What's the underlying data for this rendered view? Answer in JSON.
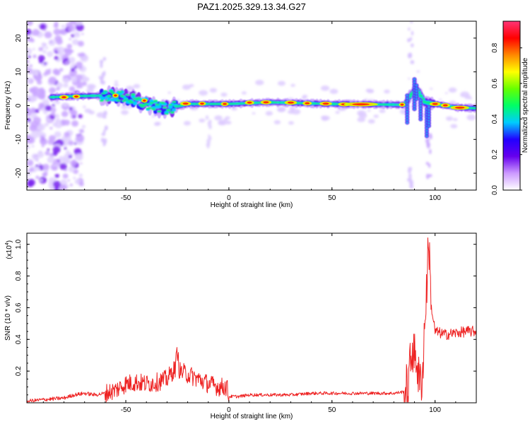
{
  "figure": {
    "title": "PAZ1.2025.329.13.34.G27"
  },
  "chart_data": [
    {
      "type": "heatmap",
      "xlabel": "Height of straight line (km)",
      "ylabel": "Frequency (Hz)",
      "xlim": [
        -98,
        120
      ],
      "ylim": [
        -25,
        25
      ],
      "xticks": [
        -50,
        0,
        50,
        100
      ],
      "yticks": [
        -20,
        -10,
        0,
        10,
        20
      ],
      "ridge": {
        "x": [
          -86,
          -75,
          -60,
          -50,
          -40,
          -30,
          -20,
          0,
          20,
          50,
          80,
          85,
          88,
          91,
          95,
          100,
          110,
          120
        ],
        "y": [
          2.5,
          2.8,
          3.0,
          2.5,
          0.5,
          -1.0,
          0.5,
          0.5,
          1.0,
          0.5,
          0.3,
          0.2,
          3.0,
          5.0,
          1.0,
          0.5,
          -0.5,
          -0.8
        ]
      },
      "colorbar": {
        "label": "Normalized spectral amplitude",
        "range": [
          0,
          0.95
        ],
        "ticks": [
          0.0,
          0.2,
          0.4,
          0.6,
          0.8
        ],
        "tick_labels": [
          "0.0",
          "0.2",
          "0.4",
          "0.6",
          "0.8"
        ],
        "colors": [
          "#ffffff",
          "#cc99ff",
          "#6600ee",
          "#2200ff",
          "#00ccff",
          "#00ff66",
          "#66ff00",
          "#ffff00",
          "#ff8800",
          "#ff0000",
          "#ff3377"
        ]
      }
    },
    {
      "type": "line",
      "xlabel": "Height of straight line (km)",
      "ylabel": "SNR (10 * v/v)",
      "y_scale_label": "(x10",
      "y_scale_exp": "4",
      "y_scale_close": ")",
      "xlim": [
        -98,
        120
      ],
      "ylim": [
        0,
        1.07
      ],
      "xticks": [
        -50,
        0,
        50,
        100
      ],
      "yticks": [
        0.2,
        0.4,
        0.6,
        0.8,
        1.0
      ],
      "ytick_labels": [
        "0.2",
        "0.4",
        "0.6",
        "0.8",
        "1.0"
      ],
      "series": [
        {
          "color": "#ee2222",
          "x": [
            -98,
            -90,
            -80,
            -75,
            -70,
            -65,
            -60,
            -55,
            -50,
            -45,
            -40,
            -35,
            -30,
            -26,
            -25,
            -24,
            -20,
            -15,
            -10,
            -5,
            -1,
            0,
            5,
            10,
            20,
            30,
            40,
            50,
            60,
            70,
            80,
            85,
            87,
            88,
            89,
            90,
            91,
            92,
            93,
            94,
            95,
            96,
            97,
            98,
            100,
            105,
            110,
            115,
            120
          ],
          "values": [
            0.01,
            0.02,
            0.03,
            0.05,
            0.06,
            0.05,
            0.06,
            0.08,
            0.12,
            0.13,
            0.12,
            0.13,
            0.15,
            0.22,
            0.33,
            0.2,
            0.18,
            0.15,
            0.12,
            0.1,
            0.1,
            0.04,
            0.04,
            0.05,
            0.05,
            0.05,
            0.06,
            0.06,
            0.06,
            0.06,
            0.06,
            0.07,
            0.1,
            0.25,
            0.36,
            0.28,
            0.3,
            0.15,
            0.12,
            0.2,
            0.5,
            0.75,
            1.05,
            0.62,
            0.45,
            0.43,
            0.44,
            0.45,
            0.45
          ]
        }
      ]
    }
  ]
}
